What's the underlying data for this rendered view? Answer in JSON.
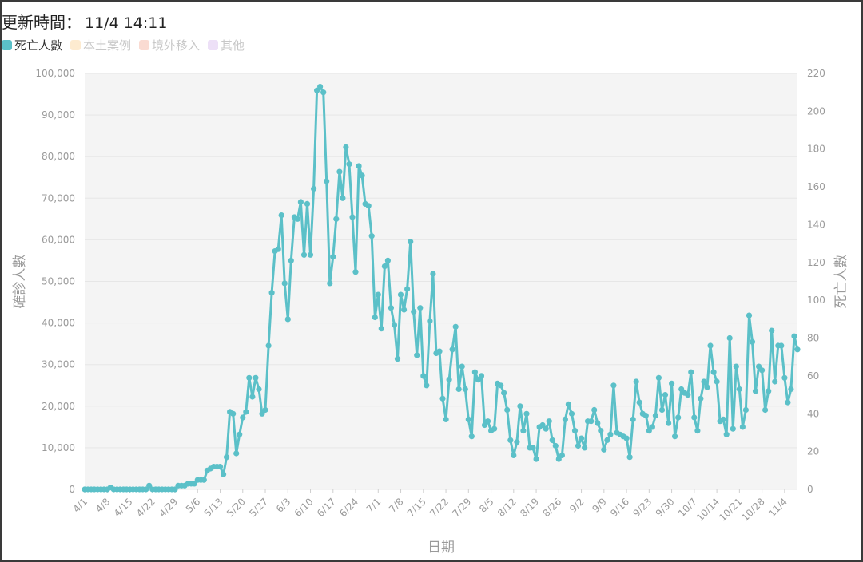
{
  "header": {
    "title_label": "更新時間：",
    "timestamp": "11/4 14:11"
  },
  "legend": [
    {
      "label": "死亡人數",
      "color": "#5bc0c8",
      "active": true
    },
    {
      "label": "本土案例",
      "color": "#fdebd0",
      "active": false
    },
    {
      "label": "境外移入",
      "color": "#fadbd2",
      "active": false
    },
    {
      "label": "其他",
      "color": "#ede0f7",
      "active": false
    }
  ],
  "chart_data": {
    "type": "line",
    "xlabel": "日期",
    "ylabel_left": "確診人數",
    "ylabel_right": "死亡人數",
    "ylim_left": [
      0,
      100000
    ],
    "ylim_right": [
      0,
      220
    ],
    "yticks_left": [
      "0",
      "10,000",
      "20,000",
      "30,000",
      "40,000",
      "50,000",
      "60,000",
      "70,000",
      "80,000",
      "90,000",
      "100,000"
    ],
    "yticks_right": [
      "0",
      "20",
      "40",
      "60",
      "80",
      "100",
      "120",
      "140",
      "160",
      "180",
      "200",
      "220"
    ],
    "x_tick_labels": [
      "4/1",
      "4/8",
      "4/15",
      "4/22",
      "4/29",
      "5/6",
      "5/13",
      "5/20",
      "5/27",
      "6/3",
      "6/10",
      "6/17",
      "6/24",
      "7/1",
      "7/8",
      "7/15",
      "7/22",
      "7/29",
      "8/5",
      "8/12",
      "8/19",
      "8/26",
      "9/2",
      "9/9",
      "9/16",
      "9/23",
      "9/30",
      "10/7",
      "10/14",
      "10/21",
      "10/28",
      "11/4"
    ],
    "grid": true,
    "legend_position": "top-left",
    "series": [
      {
        "name": "死亡人數",
        "color": "#5bc0c8",
        "axis": "right",
        "start_date": "4/1",
        "values": [
          0,
          0,
          0,
          0,
          0,
          0,
          0,
          0,
          1,
          0,
          0,
          0,
          0,
          0,
          0,
          0,
          0,
          0,
          0,
          0,
          2,
          0,
          0,
          0,
          0,
          0,
          0,
          0,
          0,
          2,
          2,
          2,
          3,
          3,
          3,
          5,
          5,
          5,
          10,
          11,
          12,
          12,
          12,
          8,
          17,
          41,
          40,
          19,
          29,
          38,
          41,
          59,
          49,
          59,
          53,
          40,
          42,
          76,
          104,
          126,
          127,
          145,
          109,
          90,
          121,
          144,
          143,
          152,
          124,
          151,
          124,
          159,
          211,
          213,
          210,
          163,
          109,
          123,
          143,
          168,
          154,
          181,
          172,
          144,
          115,
          171,
          166,
          151,
          150,
          134,
          91,
          103,
          85,
          118,
          121,
          96,
          87,
          69,
          103,
          95,
          106,
          131,
          94,
          71,
          96,
          60,
          55,
          89,
          114,
          72,
          73,
          48,
          37,
          58,
          74,
          86,
          53,
          65,
          53,
          37,
          28,
          62,
          58,
          60,
          34,
          36,
          31,
          32,
          56,
          55,
          51,
          42,
          26,
          18,
          25,
          44,
          31,
          40,
          22,
          22,
          16,
          33,
          34,
          32,
          36,
          26,
          23,
          16,
          18,
          37,
          45,
          40,
          31,
          23,
          27,
          22,
          36,
          36,
          42,
          35,
          31,
          21,
          26,
          29,
          55,
          30,
          29,
          28,
          27,
          17,
          37,
          57,
          46,
          40,
          39,
          31,
          33,
          39,
          59,
          42,
          50,
          35,
          56,
          28,
          38,
          53,
          51,
          50,
          62,
          38,
          31,
          48,
          57,
          54,
          76,
          62,
          57,
          36,
          37,
          29,
          80,
          32,
          65,
          53,
          33,
          42,
          92,
          78,
          52,
          65,
          63,
          42,
          52,
          84,
          57,
          76,
          76,
          59,
          46,
          53,
          81,
          74
        ]
      }
    ]
  }
}
